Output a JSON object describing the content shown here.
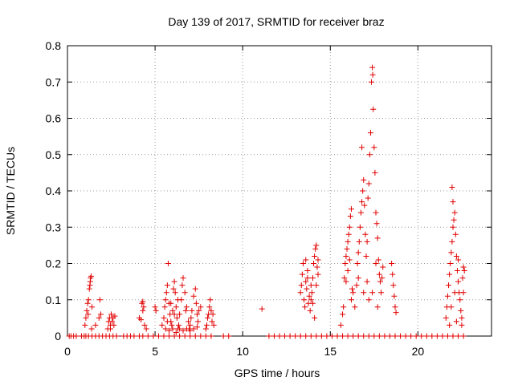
{
  "chart_data": {
    "type": "scatter",
    "title": "Day 139 of 2017, SRMTID for receiver braz",
    "xlabel": "GPS time / hours",
    "ylabel": "SRMTID / TECUs",
    "xlim": [
      0,
      24.2
    ],
    "ylim": [
      0,
      0.8
    ],
    "xticks": [
      0,
      5,
      10,
      15,
      20
    ],
    "yticks": [
      0,
      0.1,
      0.2,
      0.3,
      0.4,
      0.5,
      0.6,
      0.7,
      0.8
    ],
    "xtick_labels": [
      "0",
      "5",
      "10",
      "15",
      "20"
    ],
    "ytick_labels": [
      "0",
      "0.1",
      "0.2",
      "0.3",
      "0.4",
      "0.5",
      "0.6",
      "0.7",
      "0.8"
    ],
    "grid": true,
    "marker": "+",
    "marker_color": "#e00000",
    "series": [
      {
        "name": "SRMTID",
        "points": [
          [
            0.1,
            0
          ],
          [
            0.2,
            0
          ],
          [
            0.35,
            0
          ],
          [
            0.5,
            0
          ],
          [
            0.8,
            0
          ],
          [
            0.95,
            0
          ],
          [
            1.05,
            0
          ],
          [
            1.2,
            0
          ],
          [
            1.4,
            0
          ],
          [
            1.6,
            0
          ],
          [
            1.8,
            0
          ],
          [
            2.0,
            0
          ],
          [
            2.2,
            0
          ],
          [
            2.4,
            0
          ],
          [
            2.6,
            0
          ],
          [
            2.8,
            0
          ],
          [
            3.2,
            0
          ],
          [
            3.4,
            0
          ],
          [
            3.6,
            0
          ],
          [
            3.8,
            0
          ],
          [
            4.1,
            0
          ],
          [
            4.3,
            0
          ],
          [
            4.6,
            0
          ],
          [
            4.9,
            0
          ],
          [
            5.2,
            0
          ],
          [
            5.5,
            0
          ],
          [
            5.8,
            0
          ],
          [
            6.1,
            0
          ],
          [
            6.4,
            0
          ],
          [
            6.7,
            0
          ],
          [
            7.0,
            0
          ],
          [
            7.3,
            0
          ],
          [
            7.6,
            0
          ],
          [
            7.9,
            0
          ],
          [
            8.2,
            0
          ],
          [
            8.9,
            0
          ],
          [
            9.2,
            0
          ],
          [
            11.5,
            0
          ],
          [
            11.8,
            0
          ],
          [
            12.1,
            0
          ],
          [
            12.4,
            0
          ],
          [
            12.7,
            0
          ],
          [
            13.0,
            0
          ],
          [
            13.3,
            0
          ],
          [
            13.6,
            0
          ],
          [
            13.9,
            0
          ],
          [
            14.2,
            0
          ],
          [
            14.5,
            0
          ],
          [
            14.8,
            0
          ],
          [
            15.1,
            0
          ],
          [
            15.4,
            0
          ],
          [
            15.7,
            0
          ],
          [
            16.0,
            0
          ],
          [
            16.3,
            0
          ],
          [
            16.6,
            0
          ],
          [
            16.9,
            0
          ],
          [
            17.2,
            0
          ],
          [
            17.5,
            0
          ],
          [
            17.8,
            0
          ],
          [
            18.1,
            0
          ],
          [
            18.4,
            0
          ],
          [
            18.7,
            0
          ],
          [
            19.0,
            0
          ],
          [
            19.3,
            0
          ],
          [
            19.6,
            0
          ],
          [
            19.9,
            0
          ],
          [
            20.2,
            0
          ],
          [
            20.5,
            0
          ],
          [
            20.8,
            0
          ],
          [
            21.1,
            0
          ],
          [
            21.4,
            0
          ],
          [
            21.7,
            0
          ],
          [
            22.0,
            0
          ],
          [
            22.3,
            0
          ],
          [
            22.6,
            0
          ],
          [
            1.0,
            0.03
          ],
          [
            1.05,
            0.05
          ],
          [
            1.1,
            0.07
          ],
          [
            1.15,
            0.09
          ],
          [
            1.2,
            0.1
          ],
          [
            1.25,
            0.13
          ],
          [
            1.3,
            0.15
          ],
          [
            1.32,
            0.16
          ],
          [
            1.35,
            0.165
          ],
          [
            1.28,
            0.14
          ],
          [
            1.18,
            0.06
          ],
          [
            1.38,
            0.02
          ],
          [
            1.4,
            0.08
          ],
          [
            1.6,
            0.03
          ],
          [
            1.8,
            0.05
          ],
          [
            1.85,
            0.1
          ],
          [
            1.9,
            0.06
          ],
          [
            2.3,
            0.02
          ],
          [
            2.35,
            0.04
          ],
          [
            2.4,
            0.05
          ],
          [
            2.45,
            0.03
          ],
          [
            2.5,
            0.06
          ],
          [
            2.55,
            0.04
          ],
          [
            2.6,
            0.05
          ],
          [
            2.65,
            0.03
          ],
          [
            2.7,
            0.055
          ],
          [
            2.45,
            0.02
          ],
          [
            4.1,
            0.05
          ],
          [
            4.2,
            0.045
          ],
          [
            4.25,
            0.09
          ],
          [
            4.3,
            0.095
          ],
          [
            4.35,
            0.08
          ],
          [
            4.4,
            0.03
          ],
          [
            4.5,
            0.02
          ],
          [
            4.3,
            0.07
          ],
          [
            5.0,
            0.08
          ],
          [
            5.05,
            0.07
          ],
          [
            5.4,
            0.03
          ],
          [
            5.5,
            0.05
          ],
          [
            5.55,
            0.08
          ],
          [
            5.6,
            0.1
          ],
          [
            5.65,
            0.12
          ],
          [
            5.7,
            0.14
          ],
          [
            5.75,
            0.2
          ],
          [
            5.8,
            0.09
          ],
          [
            5.85,
            0.06
          ],
          [
            5.9,
            0.04
          ],
          [
            5.95,
            0.03
          ],
          [
            6.0,
            0.07
          ],
          [
            6.05,
            0.13
          ],
          [
            6.1,
            0.15
          ],
          [
            6.15,
            0.12
          ],
          [
            6.2,
            0.08
          ],
          [
            6.25,
            0.05
          ],
          [
            6.3,
            0.02
          ],
          [
            6.35,
            0.03
          ],
          [
            6.4,
            0.06
          ],
          [
            6.5,
            0.1
          ],
          [
            6.55,
            0.14
          ],
          [
            6.6,
            0.16
          ],
          [
            6.7,
            0.12
          ],
          [
            6.8,
            0.08
          ],
          [
            6.9,
            0.04
          ],
          [
            6.95,
            0.02
          ],
          [
            7.0,
            0.03
          ],
          [
            7.05,
            0.05
          ],
          [
            7.1,
            0.07
          ],
          [
            7.2,
            0.11
          ],
          [
            7.3,
            0.13
          ],
          [
            7.35,
            0.09
          ],
          [
            7.4,
            0.06
          ],
          [
            7.45,
            0.04
          ],
          [
            7.5,
            0.07
          ],
          [
            7.6,
            0.08
          ],
          [
            5.6,
            0.02
          ],
          [
            5.7,
            0.04
          ],
          [
            5.8,
            0.015
          ],
          [
            6.0,
            0.02
          ],
          [
            6.2,
            0.01
          ],
          [
            6.4,
            0.02
          ],
          [
            6.6,
            0.015
          ],
          [
            6.8,
            0.02
          ],
          [
            7.0,
            0.015
          ],
          [
            7.2,
            0.02
          ],
          [
            7.4,
            0.025
          ],
          [
            6.1,
            0.06
          ],
          [
            5.9,
            0.09
          ],
          [
            6.3,
            0.1
          ],
          [
            6.75,
            0.07
          ],
          [
            7.9,
            0.02
          ],
          [
            7.95,
            0.03
          ],
          [
            8.0,
            0.05
          ],
          [
            8.05,
            0.06
          ],
          [
            8.1,
            0.08
          ],
          [
            8.15,
            0.1
          ],
          [
            8.2,
            0.07
          ],
          [
            8.25,
            0.04
          ],
          [
            8.3,
            0.06
          ],
          [
            8.35,
            0.03
          ],
          [
            11.1,
            0.075
          ],
          [
            13.3,
            0.12
          ],
          [
            13.35,
            0.14
          ],
          [
            13.4,
            0.17
          ],
          [
            13.45,
            0.2
          ],
          [
            13.5,
            0.1
          ],
          [
            13.55,
            0.08
          ],
          [
            13.6,
            0.15
          ],
          [
            13.65,
            0.13
          ],
          [
            13.7,
            0.18
          ],
          [
            13.75,
            0.09
          ],
          [
            13.8,
            0.11
          ],
          [
            13.85,
            0.07
          ],
          [
            13.9,
            0.14
          ],
          [
            13.95,
            0.12
          ],
          [
            14.0,
            0.16
          ],
          [
            14.05,
            0.2
          ],
          [
            14.1,
            0.22
          ],
          [
            14.15,
            0.24
          ],
          [
            14.2,
            0.25
          ],
          [
            14.25,
            0.19
          ],
          [
            14.3,
            0.17
          ],
          [
            14.1,
            0.05
          ],
          [
            14.0,
            0.09
          ],
          [
            13.7,
            0.16
          ],
          [
            13.6,
            0.21
          ],
          [
            13.9,
            0.1
          ],
          [
            14.2,
            0.14
          ],
          [
            14.3,
            0.21
          ],
          [
            15.6,
            0.03
          ],
          [
            15.7,
            0.06
          ],
          [
            15.75,
            0.08
          ],
          [
            15.8,
            0.16
          ],
          [
            15.85,
            0.2
          ],
          [
            15.9,
            0.22
          ],
          [
            15.95,
            0.24
          ],
          [
            16.0,
            0.26
          ],
          [
            16.05,
            0.28
          ],
          [
            16.1,
            0.3
          ],
          [
            16.15,
            0.33
          ],
          [
            16.2,
            0.35
          ],
          [
            16.1,
            0.21
          ],
          [
            16.0,
            0.18
          ],
          [
            15.9,
            0.15
          ],
          [
            16.2,
            0.1
          ],
          [
            16.25,
            0.13
          ],
          [
            16.3,
            0.12
          ],
          [
            16.4,
            0.08
          ],
          [
            16.5,
            0.14
          ],
          [
            16.55,
            0.2
          ],
          [
            16.6,
            0.23
          ],
          [
            16.65,
            0.26
          ],
          [
            16.7,
            0.3
          ],
          [
            16.75,
            0.34
          ],
          [
            16.8,
            0.37
          ],
          [
            16.85,
            0.4
          ],
          [
            16.9,
            0.43
          ],
          [
            16.95,
            0.36
          ],
          [
            16.8,
            0.52
          ],
          [
            17.0,
            0.28
          ],
          [
            17.05,
            0.22
          ],
          [
            17.1,
            0.26
          ],
          [
            17.15,
            0.38
          ],
          [
            17.2,
            0.42
          ],
          [
            17.25,
            0.5
          ],
          [
            17.3,
            0.56
          ],
          [
            17.35,
            0.7
          ],
          [
            17.4,
            0.74
          ],
          [
            17.42,
            0.72
          ],
          [
            17.45,
            0.625
          ],
          [
            17.5,
            0.52
          ],
          [
            17.55,
            0.45
          ],
          [
            17.6,
            0.34
          ],
          [
            17.65,
            0.31
          ],
          [
            17.7,
            0.27
          ],
          [
            17.75,
            0.21
          ],
          [
            17.8,
            0.17
          ],
          [
            17.85,
            0.15
          ],
          [
            17.9,
            0.12
          ],
          [
            17.95,
            0.16
          ],
          [
            18.0,
            0.19
          ],
          [
            17.7,
            0.08
          ],
          [
            17.4,
            0.12
          ],
          [
            17.2,
            0.1
          ],
          [
            16.9,
            0.12
          ],
          [
            16.6,
            0.16
          ],
          [
            17.1,
            0.15
          ],
          [
            17.6,
            0.2
          ],
          [
            18.5,
            0.2
          ],
          [
            18.55,
            0.17
          ],
          [
            18.6,
            0.14
          ],
          [
            18.65,
            0.11
          ],
          [
            18.7,
            0.08
          ],
          [
            18.75,
            0.065
          ],
          [
            21.6,
            0.05
          ],
          [
            21.65,
            0.08
          ],
          [
            21.7,
            0.11
          ],
          [
            21.75,
            0.14
          ],
          [
            21.8,
            0.17
          ],
          [
            21.85,
            0.2
          ],
          [
            21.9,
            0.23
          ],
          [
            21.95,
            0.26
          ],
          [
            22.0,
            0.3
          ],
          [
            22.05,
            0.32
          ],
          [
            22.1,
            0.34
          ],
          [
            22.0,
            0.37
          ],
          [
            21.95,
            0.41
          ],
          [
            22.15,
            0.28
          ],
          [
            22.2,
            0.22
          ],
          [
            22.25,
            0.18
          ],
          [
            22.3,
            0.15
          ],
          [
            22.35,
            0.12
          ],
          [
            22.4,
            0.1
          ],
          [
            22.45,
            0.07
          ],
          [
            22.5,
            0.05
          ],
          [
            22.55,
            0.16
          ],
          [
            22.6,
            0.19
          ],
          [
            22.65,
            0.18
          ],
          [
            22.3,
            0.21
          ],
          [
            22.1,
            0.12
          ],
          [
            21.9,
            0.08
          ],
          [
            21.8,
            0.03
          ],
          [
            22.2,
            0.04
          ],
          [
            22.5,
            0.03
          ],
          [
            22.6,
            0.12
          ]
        ]
      }
    ]
  }
}
